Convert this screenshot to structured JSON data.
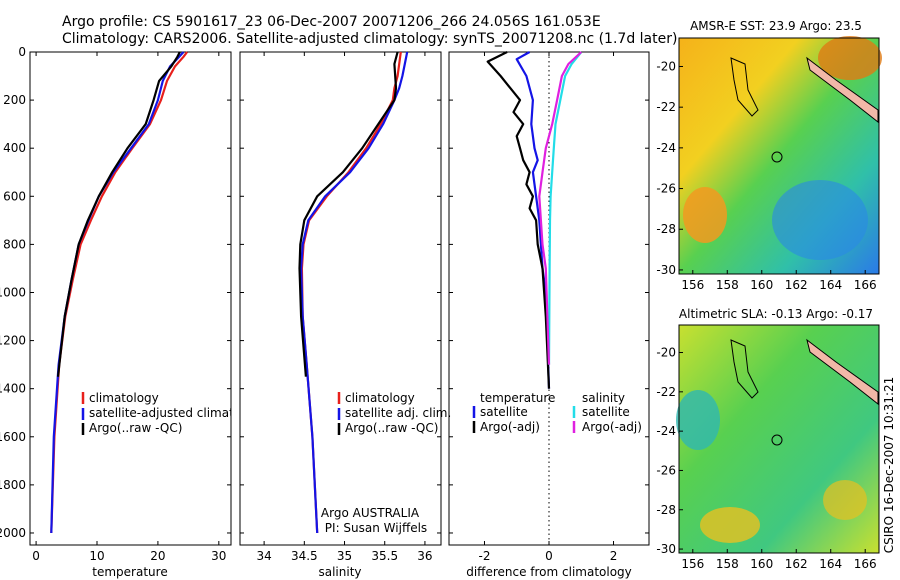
{
  "header": {
    "line1": "Argo profile: CS 5901617_23 06-Dec-2007 20071206_266 24.056S 161.053E",
    "line2": "Climatology: CARS2006. Satellite-adjusted climatology: synTS_20071208.nc (1.7d later)"
  },
  "credit": "CSIRO 16-Dec-2007 10:31:21",
  "colors": {
    "climatology": "#e8201c",
    "satellite": "#1414e6",
    "argo": "#000000",
    "sal_satellite": "#22dde8",
    "sal_argo": "#e020e0"
  },
  "chart_data": [
    {
      "type": "line",
      "id": "temperature",
      "xlabel": "temperature",
      "ylabel": "",
      "xlim": [
        -1,
        32
      ],
      "ylim": [
        2050,
        0
      ],
      "xticks": [
        0,
        10,
        20,
        30
      ],
      "yticks": [
        0,
        200,
        400,
        600,
        800,
        1000,
        1200,
        1400,
        1600,
        1800,
        2000
      ],
      "series": [
        {
          "name": "climatology",
          "color": "climatology",
          "x": [
            24.8,
            24.2,
            22.8,
            21.5,
            20.5,
            18.7,
            15.8,
            13.0,
            10.8,
            9.0,
            7.3,
            6.0,
            4.8,
            3.8,
            3.0,
            2.5
          ],
          "y": [
            0,
            20,
            60,
            120,
            200,
            300,
            400,
            500,
            600,
            700,
            800,
            950,
            1100,
            1300,
            1600,
            2000
          ]
        },
        {
          "name": "satellite-adjusted climatology",
          "color": "satellite",
          "x": [
            24.2,
            23.5,
            22.0,
            20.8,
            20.0,
            18.5,
            15.6,
            12.7,
            10.3,
            8.6,
            7.0,
            5.8,
            4.7,
            3.7,
            2.9,
            2.5
          ],
          "y": [
            0,
            20,
            60,
            120,
            200,
            300,
            400,
            500,
            600,
            700,
            800,
            950,
            1100,
            1300,
            1600,
            2000
          ]
        },
        {
          "name": "Argo(..raw -QC)",
          "color": "argo",
          "x": [
            23.6,
            23.2,
            22.2,
            20.2,
            19.3,
            18.0,
            15.0,
            12.5,
            10.3,
            8.5,
            7.0,
            5.8,
            4.7,
            3.6
          ],
          "y": [
            0,
            20,
            60,
            120,
            200,
            300,
            400,
            500,
            600,
            700,
            800,
            950,
            1100,
            1350
          ]
        }
      ],
      "legend": [
        "climatology",
        "satellite-adjusted climatology",
        "Argo(..raw -QC)"
      ]
    },
    {
      "type": "line",
      "id": "salinity",
      "xlabel": "salinity",
      "ylabel": "",
      "xlim": [
        33.7,
        36.2
      ],
      "ylim": [
        2050,
        0
      ],
      "xticks": [
        34,
        34.5,
        35,
        35.5,
        36
      ],
      "series": [
        {
          "name": "climatology",
          "color": "climatology",
          "x": [
            35.7,
            35.68,
            35.66,
            35.62,
            35.6,
            35.45,
            35.27,
            35.05,
            34.78,
            34.56,
            34.49,
            34.47,
            34.48,
            34.53,
            34.6,
            34.66
          ],
          "y": [
            0,
            50,
            100,
            150,
            200,
            300,
            400,
            500,
            600,
            700,
            800,
            900,
            1100,
            1300,
            1600,
            2000
          ]
        },
        {
          "name": "satellite adj. clim.",
          "color": "satellite",
          "x": [
            35.78,
            35.75,
            35.72,
            35.68,
            35.62,
            35.48,
            35.3,
            35.07,
            34.76,
            34.55,
            34.48,
            34.46,
            34.48,
            34.53,
            34.6,
            34.66
          ],
          "y": [
            0,
            50,
            100,
            150,
            200,
            300,
            400,
            500,
            600,
            700,
            800,
            900,
            1100,
            1300,
            1600,
            2000
          ]
        },
        {
          "name": "Argo(..raw -QC)",
          "color": "argo",
          "x": [
            35.66,
            35.62,
            35.63,
            35.64,
            35.62,
            35.42,
            35.22,
            34.98,
            34.66,
            34.5,
            34.45,
            34.44,
            34.46,
            34.52
          ],
          "y": [
            0,
            50,
            100,
            150,
            200,
            300,
            400,
            500,
            600,
            700,
            800,
            900,
            1100,
            1350
          ]
        }
      ],
      "legend": [
        "climatology",
        "satellite adj. clim.",
        "Argo(..raw -QC)"
      ],
      "annotation": [
        "Argo AUSTRALIA",
        "PI: Susan Wijffels"
      ]
    },
    {
      "type": "line",
      "id": "difference",
      "xlabel": "difference from climatology",
      "ylabel": "",
      "xlim": [
        -3.1,
        3.1
      ],
      "ylim": [
        2050,
        0
      ],
      "xticks": [
        -2,
        0,
        2
      ],
      "zero_line": "dotted",
      "series": [
        {
          "name": "satellite",
          "group": "temperature",
          "color": "satellite",
          "x": [
            -0.6,
            -1.0,
            -0.7,
            -0.5,
            -0.55,
            -0.45,
            -0.35,
            -0.5,
            -0.45,
            -0.4,
            -0.3,
            -0.25,
            -0.2,
            -0.1,
            -0.05,
            0.0
          ],
          "y": [
            0,
            30,
            100,
            200,
            300,
            400,
            450,
            500,
            550,
            600,
            700,
            800,
            900,
            1000,
            1200,
            1400
          ]
        },
        {
          "name": "Argo(-adj)",
          "group": "temperature",
          "color": "argo",
          "x": [
            -1.3,
            -1.9,
            -1.5,
            -1.2,
            -0.9,
            -1.1,
            -0.8,
            -1.0,
            -0.9,
            -0.8,
            -0.6,
            -0.7,
            -0.5,
            -0.6,
            -0.4,
            -0.35,
            -0.2,
            -0.1,
            0.0
          ],
          "y": [
            0,
            40,
            100,
            150,
            200,
            250,
            300,
            350,
            400,
            450,
            500,
            550,
            600,
            650,
            700,
            800,
            900,
            1100,
            1400
          ]
        },
        {
          "name": "satellite",
          "group": "salinity",
          "color": "sal_satellite",
          "x": [
            1.0,
            0.7,
            0.5,
            0.35,
            0.2,
            0.15,
            0.1,
            0.05,
            0.03,
            0.02,
            0.0
          ],
          "y": [
            0,
            50,
            100,
            200,
            300,
            400,
            500,
            600,
            700,
            900,
            1300
          ]
        },
        {
          "name": "Argo(-adj)",
          "group": "salinity",
          "color": "sal_argo",
          "x": [
            1.0,
            0.6,
            0.4,
            0.25,
            0.1,
            -0.1,
            -0.2,
            -0.3,
            -0.25,
            -0.2,
            -0.1,
            -0.05,
            0.0
          ],
          "y": [
            0,
            50,
            100,
            200,
            300,
            400,
            500,
            600,
            700,
            800,
            900,
            1100,
            1300
          ]
        }
      ],
      "legend": {
        "temperature": {
          "title": "temperature",
          "items": [
            "satellite",
            "Argo(-adj)"
          ]
        },
        "salinity": {
          "title": "salinity",
          "items": [
            "satellite",
            "Argo(-adj)"
          ]
        }
      }
    },
    {
      "type": "heatmap",
      "id": "sst-map",
      "title": "AMSR-E SST: 23.9 Argo: 23.5",
      "xlim": [
        155.2,
        166.8
      ],
      "ylim": [
        -30.2,
        -18.6
      ],
      "xticks": [
        156,
        158,
        160,
        162,
        164,
        166
      ],
      "yticks": [
        -20,
        -22,
        -24,
        -26,
        -28,
        -30
      ],
      "marker": {
        "lon": 161.05,
        "lat": -24.06
      }
    },
    {
      "type": "heatmap",
      "id": "sla-map",
      "title": "Altimetric SLA: -0.13 Argo: -0.17",
      "xlim": [
        155.2,
        166.8
      ],
      "ylim": [
        -30.2,
        -18.6
      ],
      "xticks": [
        156,
        158,
        160,
        162,
        164,
        166
      ],
      "yticks": [
        -20,
        -22,
        -24,
        -26,
        -28,
        -30
      ],
      "marker": {
        "lon": 161.05,
        "lat": -24.06
      }
    }
  ]
}
